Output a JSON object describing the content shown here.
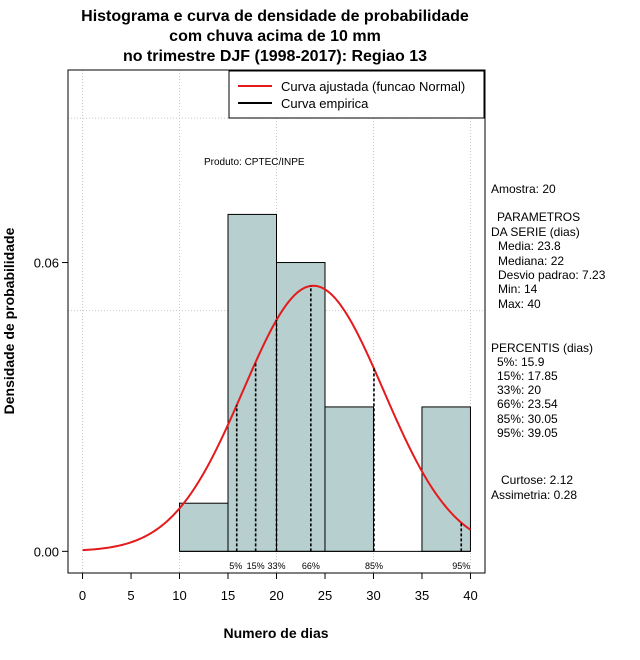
{
  "chart_data": {
    "type": "bar",
    "title_lines": [
      "Histograma e curva de densidade de probabilidade",
      "com chuva acima de 10 mm",
      "no trimestre DJF (1998-2017): Regiao 13"
    ],
    "xlabel": "Numero de dias",
    "ylabel": "Densidade de probabilidade",
    "xlim": [
      -1.5,
      41.5
    ],
    "ylim": [
      -0.0045,
      0.1
    ],
    "x_ticks": [
      0,
      5,
      10,
      15,
      20,
      25,
      30,
      35,
      40
    ],
    "x_tick_labels": [
      "0",
      "5",
      "10",
      "15",
      "20",
      "25",
      "30",
      "35",
      "40"
    ],
    "y_ticks": [
      0.0,
      0.06
    ],
    "y_tick_labels": [
      "0.00",
      "0.06"
    ],
    "grid": true,
    "grid_x": [
      0,
      10,
      20,
      30,
      40
    ],
    "grid_y": [
      0.05,
      0.09
    ],
    "bar_color": "#b7cfce",
    "bins": [
      {
        "x0": 10,
        "x1": 15,
        "density": 0.01
      },
      {
        "x0": 15,
        "x1": 20,
        "density": 0.07
      },
      {
        "x0": 20,
        "x1": 25,
        "density": 0.06
      },
      {
        "x0": 25,
        "x1": 30,
        "density": 0.03
      },
      {
        "x0": 30,
        "x1": 35,
        "density": 0.0
      },
      {
        "x0": 35,
        "x1": 40,
        "density": 0.03
      }
    ],
    "normal_curve": {
      "mean": 23.8,
      "sd": 7.23,
      "x_range": [
        0,
        40
      ],
      "color": "#e41a1c"
    },
    "percentile_markers": [
      {
        "label": "5%",
        "x": 15.9
      },
      {
        "label": "15%",
        "x": 17.85
      },
      {
        "label": "33%",
        "x": 20
      },
      {
        "label": "66%",
        "x": 23.54
      },
      {
        "label": "85%",
        "x": 30.05
      },
      {
        "label": "95%",
        "x": 39.05
      }
    ],
    "legend": {
      "position": "top-right",
      "entries": [
        {
          "label": "Curva ajustada (funcao Normal)",
          "color": "#e41a1c"
        },
        {
          "label": "Curva empirica",
          "color": "#000000"
        }
      ]
    },
    "annotation": "Produto: CPTEC/INPE"
  },
  "side_panel": {
    "amostra": "Amostra: 20",
    "param_title_1": "PARAMETROS",
    "param_title_2": "DA SERIE (dias)",
    "media": "Media: 23.8",
    "mediana": "Mediana: 22",
    "desvio": "Desvio padrao: 7.23",
    "min": "Min: 14",
    "max": "Max: 40",
    "perc_title": "PERCENTIS (dias)",
    "p5": "5%: 15.9",
    "p15": "15%: 17.85",
    "p33": "33%: 20",
    "p66": "66%: 23.54",
    "p85": "85%: 30.05",
    "p95": "95%: 39.05",
    "curtose": "Curtose: 2.12",
    "assimetria": "Assimetria: 0.28"
  }
}
